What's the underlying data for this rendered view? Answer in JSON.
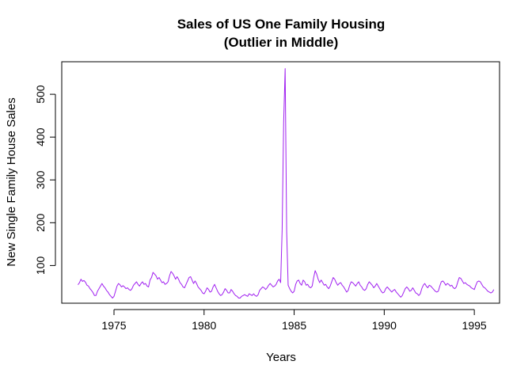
{
  "chart_data": {
    "type": "line",
    "title_line1": "Sales of US One Family Housing",
    "title_line2": "(Outlier in Middle)",
    "xlabel": "Years",
    "ylabel": "New Single Family House Sales",
    "xlim": [
      1972.1,
      1996.4
    ],
    "ylim": [
      12,
      576
    ],
    "x_ticks": [
      1975,
      1980,
      1985,
      1990,
      1995
    ],
    "y_ticks": [
      100,
      200,
      300,
      400,
      500
    ],
    "line_color": "#a020f0",
    "frequency": 12,
    "start": 1973.0,
    "series": [
      {
        "values": [
          55,
          60,
          68,
          63,
          65,
          61,
          54,
          52,
          46,
          42,
          37,
          30,
          30,
          40,
          46,
          52,
          58,
          52,
          48,
          42,
          38,
          32,
          28,
          24,
          28,
          40,
          52,
          58,
          55,
          50,
          53,
          50,
          46,
          48,
          44,
          42,
          46,
          54,
          58,
          62,
          56,
          52,
          58,
          62,
          56,
          58,
          52,
          50,
          66,
          72,
          84,
          80,
          76,
          68,
          72,
          66,
          60,
          62,
          56,
          58,
          62,
          76,
          86,
          82,
          76,
          68,
          74,
          68,
          60,
          56,
          50,
          48,
          56,
          64,
          72,
          74,
          66,
          58,
          64,
          58,
          50,
          46,
          42,
          36,
          34,
          40,
          48,
          44,
          38,
          40,
          50,
          56,
          48,
          40,
          34,
          30,
          32,
          38,
          46,
          42,
          36,
          36,
          44,
          40,
          34,
          30,
          28,
          24,
          24,
          28,
          30,
          32,
          30,
          28,
          34,
          32,
          30,
          34,
          30,
          28,
          32,
          42,
          46,
          50,
          48,
          44,
          48,
          54,
          58,
          54,
          50,
          52,
          56,
          64,
          68,
          60,
          184,
          434,
          560,
          180,
          54,
          46,
          40,
          36,
          40,
          56,
          64,
          66,
          58,
          54,
          66,
          62,
          54,
          56,
          50,
          48,
          52,
          72,
          88,
          80,
          68,
          60,
          66,
          60,
          54,
          56,
          50,
          46,
          52,
          62,
          72,
          68,
          60,
          54,
          58,
          60,
          54,
          50,
          44,
          38,
          42,
          54,
          62,
          60,
          56,
          52,
          58,
          62,
          54,
          50,
          44,
          42,
          46,
          56,
          62,
          58,
          54,
          48,
          52,
          58,
          52,
          46,
          40,
          36,
          38,
          46,
          50,
          46,
          42,
          38,
          42,
          44,
          38,
          34,
          30,
          26,
          30,
          38,
          46,
          50,
          46,
          40,
          42,
          48,
          42,
          36,
          34,
          30,
          34,
          46,
          54,
          58,
          52,
          48,
          54,
          52,
          48,
          44,
          40,
          38,
          40,
          52,
          62,
          64,
          60,
          54,
          58,
          56,
          52,
          54,
          48,
          46,
          50,
          62,
          72,
          70,
          64,
          58,
          60,
          56,
          54,
          52,
          48,
          46,
          44,
          54,
          62,
          64,
          62,
          56,
          50,
          48,
          44,
          40,
          38,
          36,
          38,
          44
        ]
      }
    ]
  }
}
